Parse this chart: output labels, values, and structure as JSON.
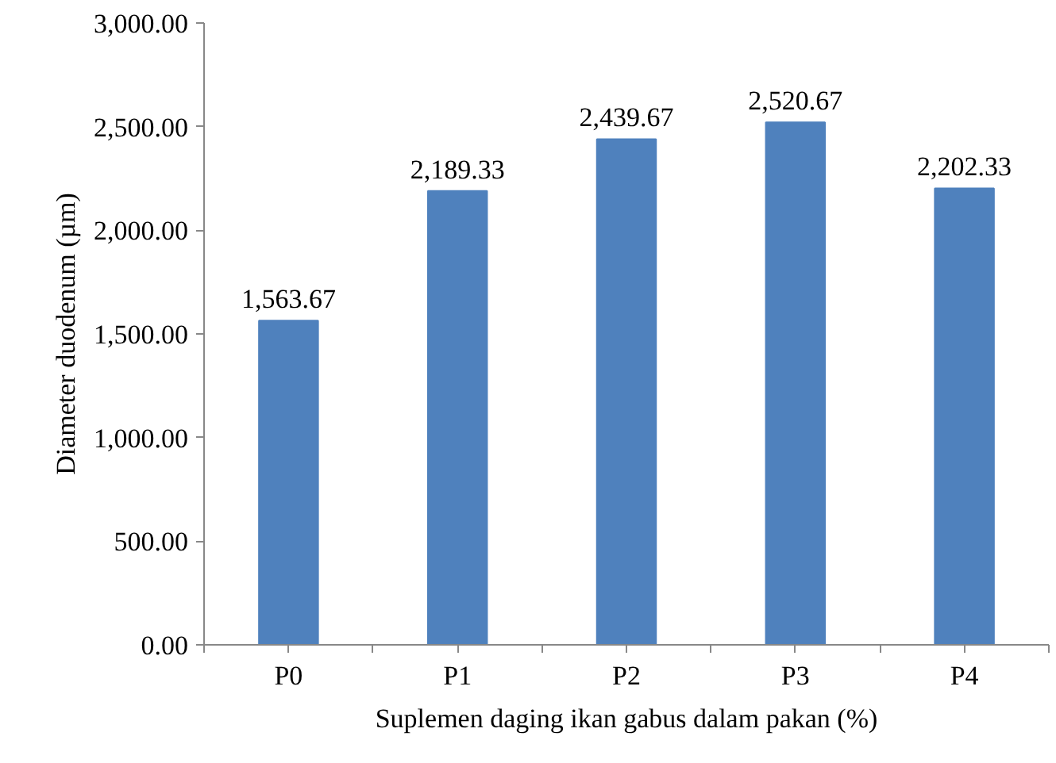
{
  "chart_data": {
    "type": "bar",
    "xlabel": "Suplemen daging ikan gabus dalam pakan (%)",
    "ylabel": "Diameter duodenum (µm)",
    "categories": [
      "P0",
      "P1",
      "P2",
      "P3",
      "P4"
    ],
    "values": [
      1563.67,
      2189.33,
      2439.67,
      2520.67,
      2202.33
    ],
    "value_labels": [
      "1,563.67",
      "2,189.33",
      "2,439.67",
      "2,520.67",
      "2,202.33"
    ],
    "color": "#4f81bd",
    "ylim": [
      0,
      3000
    ],
    "yticks": [
      {
        "value": 0,
        "label": "0.00"
      },
      {
        "value": 500,
        "label": "500.00"
      },
      {
        "value": 1000,
        "label": "1,000.00"
      },
      {
        "value": 1500,
        "label": "1,500.00"
      },
      {
        "value": 2000,
        "label": "2,000.00"
      },
      {
        "value": 2500,
        "label": "2,500.00"
      },
      {
        "value": 3000,
        "label": "3,000.00"
      }
    ],
    "grid": false
  }
}
